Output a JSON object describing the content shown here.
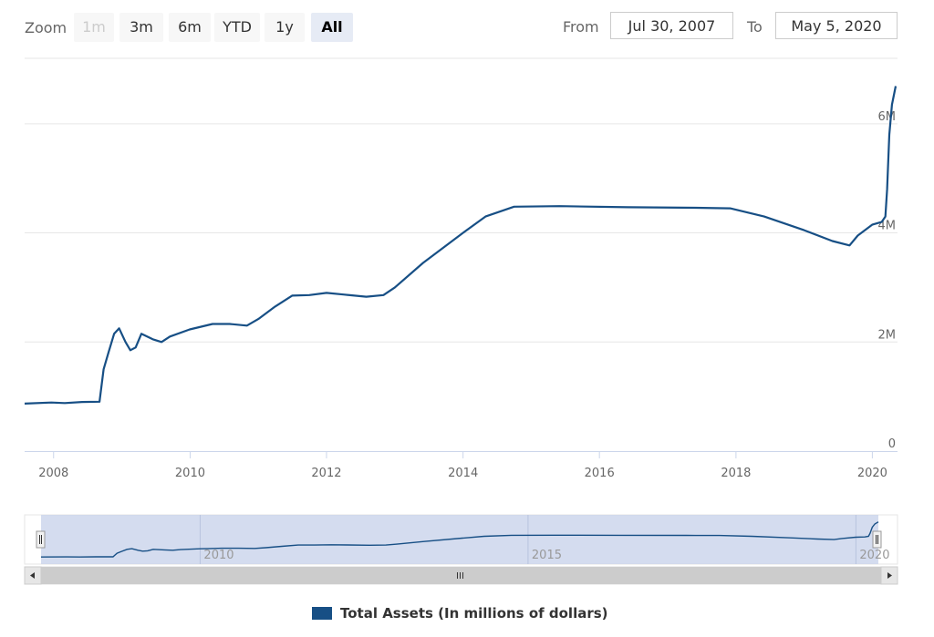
{
  "toolbar": {
    "zoom_label": "Zoom",
    "buttons": [
      {
        "label": "1m",
        "state": "disabled"
      },
      {
        "label": "3m",
        "state": "normal"
      },
      {
        "label": "6m",
        "state": "normal"
      },
      {
        "label": "YTD",
        "state": "normal"
      },
      {
        "label": "1y",
        "state": "normal"
      },
      {
        "label": "All",
        "state": "selected"
      }
    ],
    "from_label": "From",
    "from_value": "Jul 30, 2007",
    "to_label": "To",
    "to_value": "May 5, 2020"
  },
  "colors": {
    "series": "#174f85",
    "navigator_fill": "#c5d0ea",
    "grid": "#e6e6e6",
    "scrollbar": "#cccccc"
  },
  "chart_data": {
    "type": "line",
    "title": "",
    "xlabel": "",
    "ylabel": "",
    "xlim": [
      "2007-07-30",
      "2020-05-05"
    ],
    "ylim": [
      0,
      7200000
    ],
    "y_ticks": [
      {
        "value": 0,
        "label": "0"
      },
      {
        "value": 2000000,
        "label": "2M"
      },
      {
        "value": 4000000,
        "label": "4M"
      },
      {
        "value": 6000000,
        "label": "6M"
      }
    ],
    "x_ticks": [
      {
        "value": "2008-01-01",
        "label": "2008"
      },
      {
        "value": "2010-01-01",
        "label": "2010"
      },
      {
        "value": "2012-01-01",
        "label": "2012"
      },
      {
        "value": "2014-01-01",
        "label": "2014"
      },
      {
        "value": "2016-01-01",
        "label": "2016"
      },
      {
        "value": "2018-01-01",
        "label": "2018"
      },
      {
        "value": "2020-01-01",
        "label": "2020"
      }
    ],
    "grid": true,
    "legend": "bottom-center",
    "navigator_ticks": [
      {
        "value": "2010-01-01",
        "label": "2010"
      },
      {
        "value": "2015-01-01",
        "label": "2015"
      },
      {
        "value": "2020-01-01",
        "label": "2020"
      }
    ],
    "series": [
      {
        "name": "Total Assets (In millions of dollars)",
        "points": [
          [
            "2007-07-30",
            870000
          ],
          [
            "2007-12-20",
            890000
          ],
          [
            "2008-03-01",
            880000
          ],
          [
            "2008-06-01",
            900000
          ],
          [
            "2008-09-03",
            905000
          ],
          [
            "2008-09-25",
            1500000
          ],
          [
            "2008-10-20",
            1800000
          ],
          [
            "2008-11-20",
            2150000
          ],
          [
            "2008-12-17",
            2250000
          ],
          [
            "2009-01-20",
            2000000
          ],
          [
            "2009-02-15",
            1850000
          ],
          [
            "2009-03-15",
            1900000
          ],
          [
            "2009-04-15",
            2150000
          ],
          [
            "2009-06-15",
            2050000
          ],
          [
            "2009-08-01",
            2000000
          ],
          [
            "2009-09-15",
            2100000
          ],
          [
            "2009-12-30",
            2230000
          ],
          [
            "2010-03-01",
            2280000
          ],
          [
            "2010-05-01",
            2330000
          ],
          [
            "2010-08-01",
            2330000
          ],
          [
            "2010-11-01",
            2300000
          ],
          [
            "2011-01-01",
            2420000
          ],
          [
            "2011-04-01",
            2650000
          ],
          [
            "2011-07-01",
            2850000
          ],
          [
            "2011-10-01",
            2860000
          ],
          [
            "2012-01-01",
            2900000
          ],
          [
            "2012-04-01",
            2870000
          ],
          [
            "2012-08-01",
            2830000
          ],
          [
            "2012-11-01",
            2860000
          ],
          [
            "2013-01-01",
            3000000
          ],
          [
            "2013-06-01",
            3450000
          ],
          [
            "2013-12-31",
            4000000
          ],
          [
            "2014-05-01",
            4300000
          ],
          [
            "2014-10-01",
            4480000
          ],
          [
            "2015-06-01",
            4490000
          ],
          [
            "2016-06-01",
            4470000
          ],
          [
            "2017-06-01",
            4460000
          ],
          [
            "2017-12-01",
            4450000
          ],
          [
            "2018-06-01",
            4300000
          ],
          [
            "2019-01-01",
            4050000
          ],
          [
            "2019-06-01",
            3850000
          ],
          [
            "2019-09-01",
            3770000
          ],
          [
            "2019-10-15",
            3950000
          ],
          [
            "2019-12-31",
            4150000
          ],
          [
            "2020-02-20",
            4200000
          ],
          [
            "2020-03-11",
            4300000
          ],
          [
            "2020-03-20",
            4800000
          ],
          [
            "2020-04-01",
            5800000
          ],
          [
            "2020-04-15",
            6350000
          ],
          [
            "2020-05-05",
            6690000
          ]
        ]
      }
    ]
  }
}
